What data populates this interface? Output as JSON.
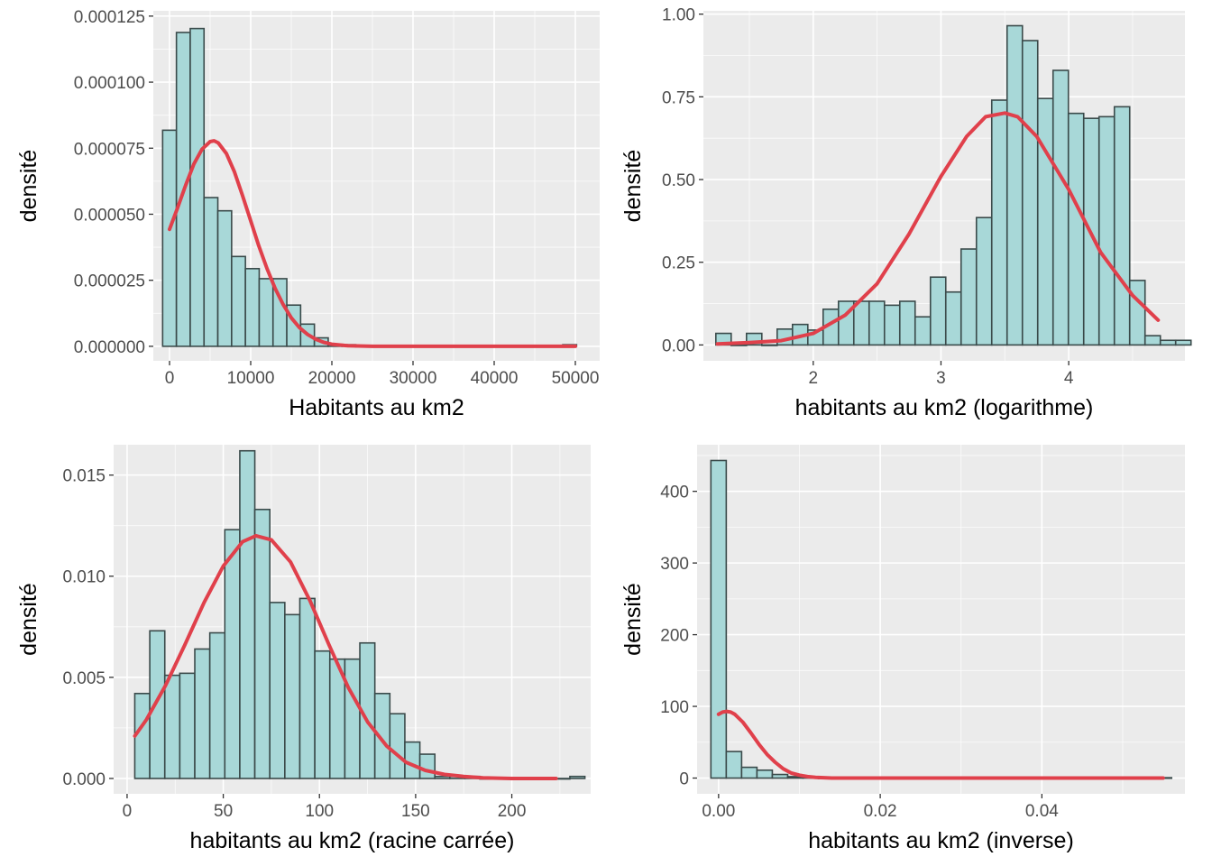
{
  "colors": {
    "panel_background": "#ebebeb",
    "grid_major": "#ffffff",
    "bar_fill": "#a8d8d8",
    "bar_stroke": "#3a4a4a",
    "density_curve": "#e0404b",
    "tick_text": "#4d4d4d"
  },
  "chart_data": [
    {
      "type": "histogram",
      "xlabel": "Habitants au km2",
      "ylabel": "densité",
      "xlim": [
        -2000,
        53000
      ],
      "ylim": [
        -5.5e-06,
        0.000127
      ],
      "x_ticks": [
        0,
        10000,
        20000,
        30000,
        40000,
        50000
      ],
      "x_tick_labels": [
        "0",
        "10000",
        "20000",
        "30000",
        "40000",
        "50000"
      ],
      "y_ticks": [
        0,
        2.5e-05,
        5e-05,
        7.5e-05,
        0.0001,
        0.000125
      ],
      "y_tick_labels": [
        "0.000000",
        "0.000025",
        "0.000050",
        "0.000075",
        "0.000100",
        "0.000125"
      ],
      "grid": true,
      "bins": {
        "start": -850,
        "width": 1700,
        "densities": [
          8.18e-05,
          0.0001188,
          0.0001203,
          5.63e-05,
          5.13e-05,
          3.4e-05,
          2.94e-05,
          2.56e-05,
          2.56e-05,
          1.56e-05,
          8.4e-06,
          3.2e-06,
          6e-07,
          6e-07,
          0,
          0,
          0,
          0,
          0,
          0,
          0,
          0,
          0,
          0,
          0,
          0,
          0,
          0,
          0,
          6e-07
        ]
      },
      "density_curve": {
        "x": [
          0,
          1000,
          2000,
          3000,
          4000,
          5000,
          5500,
          6000,
          7000,
          8000,
          9000,
          10000,
          11000,
          12000,
          13000,
          14000,
          15000,
          16000,
          17000,
          18000,
          19000,
          20000,
          22000,
          25000,
          30000,
          40000,
          50000
        ],
        "y": [
          4.43e-05,
          5.25e-05,
          6.11e-05,
          6.9e-05,
          7.46e-05,
          7.75e-05,
          7.78e-05,
          7.7e-05,
          7.3e-05,
          6.6e-05,
          5.7e-05,
          4.75e-05,
          3.8e-05,
          2.95e-05,
          2.2e-05,
          1.58e-05,
          1.08e-05,
          7.1e-06,
          4.5e-06,
          2.7e-06,
          1.5e-06,
          8e-07,
          2e-07,
          0,
          0,
          0,
          0
        ]
      }
    },
    {
      "type": "histogram",
      "xlabel": "habitants au km2 (logarithme)",
      "ylabel": "densité",
      "xlim": [
        1.14,
        4.91
      ],
      "ylim": [
        -0.048,
        1.01
      ],
      "x_ticks": [
        2,
        3,
        4
      ],
      "x_tick_labels": [
        "2",
        "3",
        "4"
      ],
      "y_ticks": [
        0,
        0.25,
        0.5,
        0.75,
        1.0
      ],
      "y_tick_labels": [
        "0.00",
        "0.25",
        "0.50",
        "0.75",
        "1.00"
      ],
      "grid": true,
      "bins": {
        "start": 1.2375,
        "width": 0.12,
        "densities": [
          0.035,
          0,
          0.035,
          0,
          0.048,
          0.062,
          0.045,
          0.108,
          0.132,
          0.132,
          0.132,
          0.12,
          0.132,
          0.085,
          0.205,
          0.16,
          0.29,
          0.385,
          0.74,
          0.965,
          0.92,
          0.745,
          0.83,
          0.7,
          0.685,
          0.69,
          0.72,
          0.195,
          0.028,
          0.014,
          0.014
        ]
      },
      "density_curve": {
        "x": [
          1.25,
          1.5,
          1.75,
          2.0,
          2.25,
          2.5,
          2.75,
          3.0,
          3.2,
          3.35,
          3.5,
          3.6,
          3.75,
          4.0,
          4.25,
          4.5,
          4.7
        ],
        "y": [
          0.003,
          0.007,
          0.013,
          0.035,
          0.09,
          0.185,
          0.335,
          0.51,
          0.63,
          0.69,
          0.701,
          0.69,
          0.63,
          0.47,
          0.28,
          0.15,
          0.075
        ]
      }
    },
    {
      "type": "histogram",
      "xlabel": "habitants au km2 (racine carrée)",
      "ylabel": "densité",
      "xlim": [
        -7,
        241
      ],
      "ylim": [
        -0.00076,
        0.0165
      ],
      "x_ticks": [
        0,
        50,
        100,
        150,
        200
      ],
      "x_tick_labels": [
        "0",
        "50",
        "100",
        "150",
        "200"
      ],
      "y_ticks": [
        0,
        0.005,
        0.01,
        0.015
      ],
      "y_tick_labels": [
        "0.000",
        "0.005",
        "0.010",
        "0.015"
      ],
      "grid": true,
      "bins": {
        "start": 4.0,
        "width": 7.8,
        "densities": [
          0.0042,
          0.0073,
          0.0051,
          0.0052,
          0.0064,
          0.0072,
          0.0123,
          0.0162,
          0.0133,
          0.0087,
          0.0081,
          0.0089,
          0.0063,
          0.0059,
          0.0059,
          0.0067,
          0.0042,
          0.0032,
          0.0018,
          0.0012,
          0.0001,
          0.0001,
          0.0001,
          0,
          0,
          0,
          0,
          0,
          0,
          0.0001
        ]
      },
      "density_curve": {
        "x": [
          4,
          10,
          20,
          30,
          40,
          50,
          60,
          67,
          75,
          85,
          95,
          105,
          115,
          125,
          135,
          145,
          155,
          165,
          175,
          185,
          200,
          223
        ],
        "y": [
          0.0021,
          0.0029,
          0.0046,
          0.0066,
          0.0087,
          0.0105,
          0.0117,
          0.012,
          0.0118,
          0.0107,
          0.0088,
          0.0066,
          0.0045,
          0.0028,
          0.0016,
          0.0008,
          0.0004,
          0.0002,
          0.0001,
          3e-05,
          0,
          0
        ]
      }
    },
    {
      "type": "histogram",
      "xlabel": "habitants au km2 (inverse)",
      "ylabel": "densité",
      "xlim": [
        -0.00266,
        0.0577
      ],
      "ylim": [
        -22,
        465
      ],
      "x_ticks": [
        0,
        0.02,
        0.04
      ],
      "x_tick_labels": [
        "0.00",
        "0.02",
        "0.04"
      ],
      "y_ticks": [
        0,
        100,
        200,
        300,
        400
      ],
      "y_tick_labels": [
        "0",
        "100",
        "200",
        "300",
        "400"
      ],
      "grid": true,
      "bins": {
        "start": -0.00095,
        "width": 0.0019,
        "densities": [
          443,
          37,
          15,
          11,
          5,
          2,
          1,
          0,
          0,
          0,
          0,
          0,
          0,
          0,
          0,
          0,
          0,
          0,
          0,
          0,
          0,
          0,
          0,
          0,
          0,
          0,
          0,
          0,
          0,
          0.5
        ]
      },
      "density_curve": {
        "x": [
          0,
          0.0005,
          0.001,
          0.0015,
          0.002,
          0.003,
          0.004,
          0.005,
          0.006,
          0.007,
          0.008,
          0.009,
          0.01,
          0.011,
          0.012,
          0.014,
          0.02,
          0.03,
          0.04,
          0.055
        ],
        "y": [
          89,
          92,
          93,
          92,
          89,
          78,
          63,
          47,
          33,
          22,
          13,
          7,
          4,
          2,
          1,
          0,
          0,
          0,
          0,
          0
        ]
      }
    }
  ]
}
